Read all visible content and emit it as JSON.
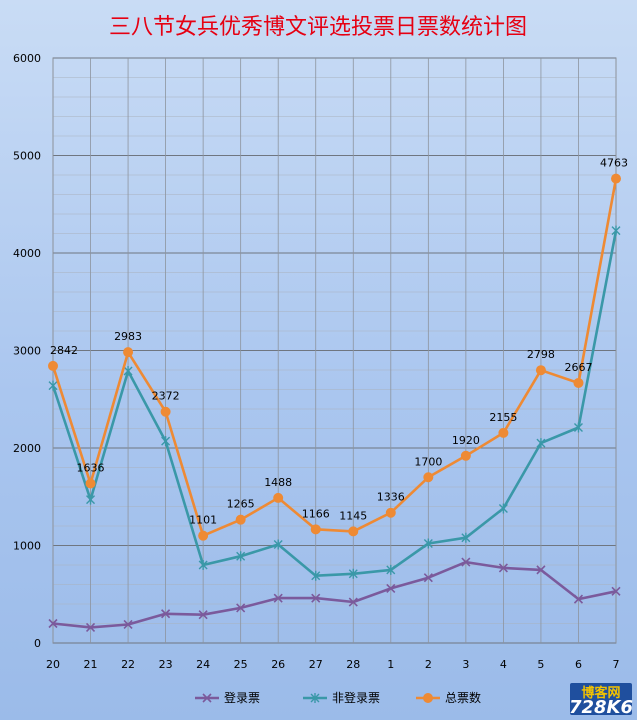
{
  "chart_data": {
    "type": "line",
    "title": "三八节女兵优秀博文评选投票日票数统计图",
    "categories": [
      "20",
      "21",
      "22",
      "23",
      "24",
      "25",
      "26",
      "27",
      "28",
      "1",
      "2",
      "3",
      "4",
      "5",
      "6",
      "7"
    ],
    "ylim": [
      0,
      6000
    ],
    "yticks": [
      0,
      1000,
      2000,
      3000,
      4000,
      5000,
      6000
    ],
    "grid": true,
    "legend_position": "bottom",
    "series": [
      {
        "name": "登录票",
        "color": "#7b5a9c",
        "marker": "x",
        "values": [
          200,
          160,
          190,
          300,
          290,
          360,
          460,
          460,
          420,
          560,
          670,
          830,
          770,
          750,
          450,
          530
        ]
      },
      {
        "name": "非登录票",
        "color": "#3a98a8",
        "marker": "asterisk",
        "values": [
          2640,
          1470,
          2790,
          2070,
          800,
          890,
          1010,
          690,
          710,
          750,
          1020,
          1080,
          1380,
          2050,
          2210,
          4230
        ]
      },
      {
        "name": "总票数",
        "color": "#ee8a34",
        "marker": "circle",
        "values": [
          2842,
          1636,
          2983,
          2372,
          1101,
          1265,
          1488,
          1166,
          1145,
          1336,
          1700,
          1920,
          2155,
          2798,
          2667,
          4763
        ],
        "data_labels": [
          "2842",
          "1636",
          "2983",
          "2372",
          "1101",
          "1265",
          "1488",
          "1166",
          "1145",
          "1336",
          "1700",
          "1920",
          "2155",
          "2798",
          "2667",
          "4763"
        ]
      }
    ]
  },
  "watermark": {
    "text_top": "博客网",
    "text_bottom": "728K6"
  }
}
